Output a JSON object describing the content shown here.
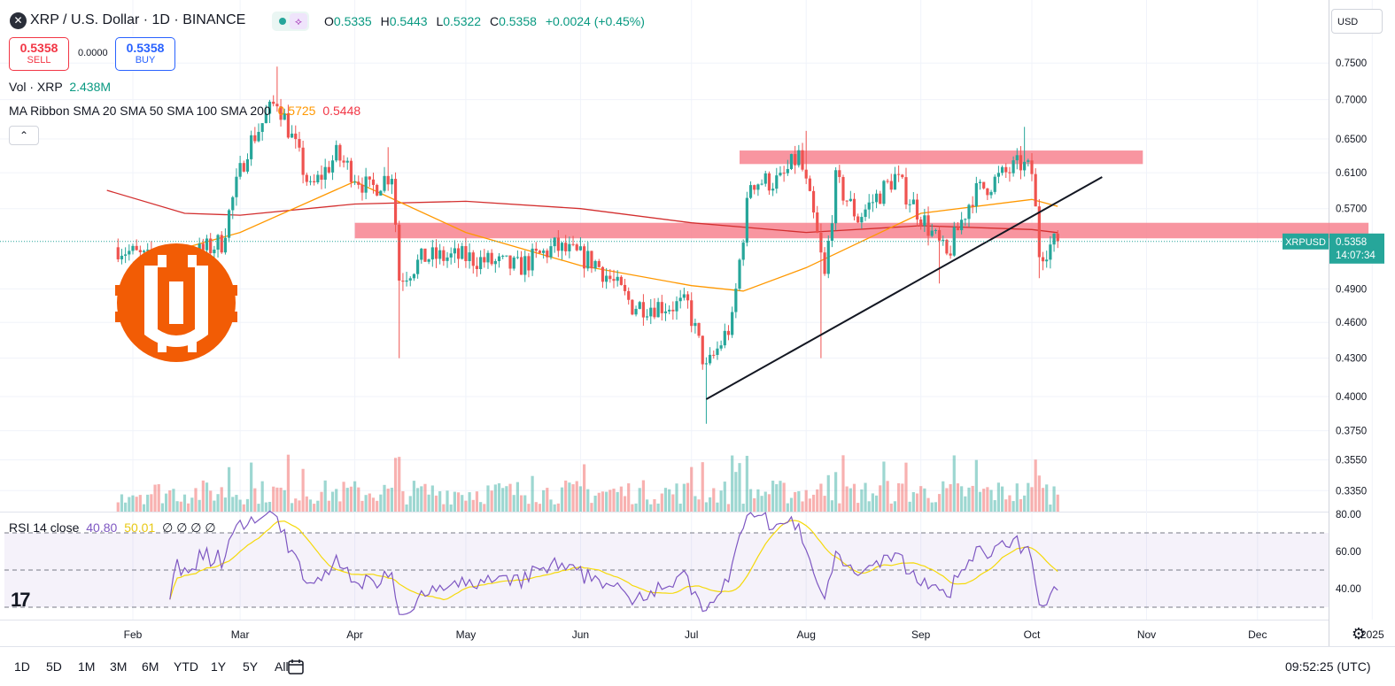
{
  "header": {
    "symbol_title": "XRP / U.S. Dollar · 1D · BINANCE",
    "ohlc": {
      "o_label": "O",
      "o": "0.5335",
      "h_label": "H",
      "h": "0.5443",
      "l_label": "L",
      "l": "0.5322",
      "c_label": "C",
      "c": "0.5358",
      "change": "+0.0024 (+0.45%)"
    },
    "sell": {
      "price": "0.5358",
      "label": "SELL"
    },
    "spread": "0.0000",
    "buy": {
      "price": "0.5358",
      "label": "BUY"
    },
    "vol_label": "Vol · XRP",
    "vol_value": "2.438M",
    "ma_label": "MA Ribbon SMA 20 SMA 50 SMA 100 SMA 200",
    "ma_v1": "0.5725",
    "ma_v2": "0.5448",
    "rsi_label": "RSI 14 close",
    "rsi_v1": "40.80",
    "rsi_v2": "50.01",
    "rsi_rest": "∅ ∅ ∅ ∅",
    "currency": "USD"
  },
  "footer": {
    "timeframes": [
      "1D",
      "5D",
      "1M",
      "3M",
      "6M",
      "YTD",
      "1Y",
      "5Y",
      "All"
    ],
    "clock": "09:52:25 (UTC)"
  },
  "icons": {
    "symbol": "xrp-logo-icon",
    "compare": "flow-icon",
    "collapse": "chevron-up-icon",
    "calendar": "calendar-icon",
    "settings": "gear-icon",
    "watermark": "coin-logo-icon"
  },
  "chart_data": {
    "type": "candlestick",
    "price_axis": {
      "ticks": [
        "0.7500",
        "0.7000",
        "0.6500",
        "0.6100",
        "0.5700",
        "0.4900",
        "0.4600",
        "0.4300",
        "0.4000",
        "0.3750",
        "0.3550",
        "0.3350"
      ],
      "scale": "log"
    },
    "time_axis": {
      "labels": [
        "Feb",
        "Mar",
        "Apr",
        "May",
        "Jun",
        "Jul",
        "Aug",
        "Sep",
        "Oct",
        "Nov",
        "Dec",
        "2025"
      ]
    },
    "last_price": {
      "symbol": "XRPUSD",
      "value": "0.5358",
      "countdown": "14:07:34",
      "color": "#26a69a"
    },
    "rsi_axis": {
      "ticks": [
        "80.00",
        "60.00",
        "40.00"
      ],
      "levels": [
        70,
        50,
        30
      ]
    },
    "resistance_zone": {
      "low": 0.62,
      "high": 0.636,
      "from": "Jul 14",
      "to": "Oct 31",
      "color": "#f7828f"
    },
    "support_zone": {
      "low": 0.539,
      "high": 0.555,
      "from": "Apr 1",
      "to": "Dec 31",
      "color": "#f7828f"
    },
    "trendline": {
      "from": {
        "date": "Jul 5",
        "value": 0.398
      },
      "to": {
        "date": "Oct 20",
        "value": 0.605
      }
    },
    "anchors": [
      {
        "date": "Jan 28",
        "value": 0.53
      },
      {
        "date": "Feb 10",
        "value": 0.51
      },
      {
        "date": "Feb 25",
        "value": 0.535
      },
      {
        "date": "Mar 3",
        "value": 0.64
      },
      {
        "date": "Mar 11",
        "value": 0.7
      },
      {
        "date": "Mar 20",
        "value": 0.59
      },
      {
        "date": "Mar 27",
        "value": 0.63
      },
      {
        "date": "Apr 5",
        "value": 0.59
      },
      {
        "date": "Apr 11",
        "value": 0.61
      },
      {
        "date": "Apr 13",
        "value": 0.5
      },
      {
        "date": "Apr 20",
        "value": 0.52
      },
      {
        "date": "May 1",
        "value": 0.52
      },
      {
        "date": "May 15",
        "value": 0.51
      },
      {
        "date": "May 25",
        "value": 0.53
      },
      {
        "date": "Jun 5",
        "value": 0.515
      },
      {
        "date": "Jun 15",
        "value": 0.475
      },
      {
        "date": "Jun 30",
        "value": 0.475
      },
      {
        "date": "Jul 5",
        "value": 0.42
      },
      {
        "date": "Jul 12",
        "value": 0.46
      },
      {
        "date": "Jul 17",
        "value": 0.6
      },
      {
        "date": "Jul 25",
        "value": 0.6
      },
      {
        "date": "Jul 30",
        "value": 0.63
      },
      {
        "date": "Aug 3",
        "value": 0.56
      },
      {
        "date": "Aug 6",
        "value": 0.5
      },
      {
        "date": "Aug 9",
        "value": 0.6
      },
      {
        "date": "Aug 15",
        "value": 0.56
      },
      {
        "date": "Aug 25",
        "value": 0.605
      },
      {
        "date": "Sep 3",
        "value": 0.55
      },
      {
        "date": "Sep 8",
        "value": 0.52
      },
      {
        "date": "Sep 15",
        "value": 0.585
      },
      {
        "date": "Sep 28",
        "value": 0.62
      },
      {
        "date": "Oct 1",
        "value": 0.61
      },
      {
        "date": "Oct 3",
        "value": 0.525
      },
      {
        "date": "Oct 8",
        "value": 0.536
      }
    ],
    "sma50_anchors": [
      {
        "date": "Feb 1",
        "value": 0.515
      },
      {
        "date": "Mar 1",
        "value": 0.545
      },
      {
        "date": "Apr 1",
        "value": 0.6
      },
      {
        "date": "May 1",
        "value": 0.545
      },
      {
        "date": "Jun 1",
        "value": 0.512
      },
      {
        "date": "Jul 1",
        "value": 0.493
      },
      {
        "date": "Jul 15",
        "value": 0.488
      },
      {
        "date": "Aug 1",
        "value": 0.51
      },
      {
        "date": "Sep 1",
        "value": 0.565
      },
      {
        "date": "Oct 1",
        "value": 0.58
      },
      {
        "date": "Oct 8",
        "value": 0.5725
      }
    ],
    "sma200_anchors": [
      {
        "date": "Jan 25",
        "value": 0.59
      },
      {
        "date": "Feb 15",
        "value": 0.565
      },
      {
        "date": "Mar 1",
        "value": 0.563
      },
      {
        "date": "Apr 1",
        "value": 0.575
      },
      {
        "date": "May 1",
        "value": 0.578
      },
      {
        "date": "Jun 1",
        "value": 0.57
      },
      {
        "date": "Jul 1",
        "value": 0.555
      },
      {
        "date": "Aug 1",
        "value": 0.545
      },
      {
        "date": "Sep 1",
        "value": 0.552
      },
      {
        "date": "Oct 1",
        "value": 0.548
      },
      {
        "date": "Oct 8",
        "value": 0.5448
      }
    ]
  }
}
